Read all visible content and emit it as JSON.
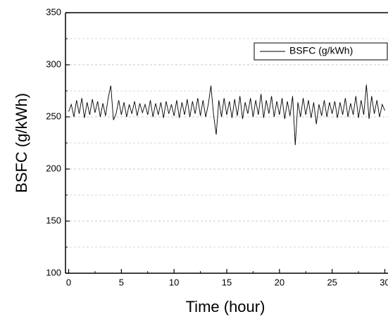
{
  "chart_data": {
    "type": "line",
    "x_label": "Time (hour)",
    "y_label": "BSFC (g/kWh)",
    "x": [
      0,
      0.25,
      0.5,
      0.75,
      1,
      1.25,
      1.5,
      1.75,
      2,
      2.25,
      2.5,
      2.75,
      3,
      3.25,
      3.5,
      3.75,
      4,
      4.25,
      4.5,
      4.75,
      5,
      5.25,
      5.5,
      5.75,
      6,
      6.25,
      6.5,
      6.75,
      7,
      7.25,
      7.5,
      7.75,
      8,
      8.25,
      8.5,
      8.75,
      9,
      9.25,
      9.5,
      9.75,
      10,
      10.25,
      10.5,
      10.75,
      11,
      11.25,
      11.5,
      11.75,
      12,
      12.25,
      12.5,
      12.75,
      13,
      13.25,
      13.5,
      13.75,
      14,
      14.25,
      14.5,
      14.75,
      15,
      15.25,
      15.5,
      15.75,
      16,
      16.25,
      16.5,
      16.75,
      17,
      17.25,
      17.5,
      17.75,
      18,
      18.25,
      18.5,
      18.75,
      19,
      19.25,
      19.5,
      19.75,
      20,
      20.25,
      20.5,
      20.75,
      21,
      21.25,
      21.5,
      21.75,
      22,
      22.25,
      22.5,
      22.75,
      23,
      23.25,
      23.5,
      23.75,
      24,
      24.25,
      24.5,
      24.75,
      25,
      25.25,
      25.5,
      25.75,
      26,
      26.25,
      26.5,
      26.75,
      27,
      27.25,
      27.5,
      27.75,
      28,
      28.25,
      28.5,
      28.75,
      29,
      29.25,
      29.5,
      29.75,
      30
    ],
    "series": [
      {
        "name": "BSFC (g/kWh)",
        "color": "#000000",
        "values": [
          255,
          262,
          250,
          266,
          253,
          268,
          249,
          264,
          252,
          267,
          254,
          265,
          250,
          263,
          251,
          268,
          280,
          247,
          253,
          266,
          252,
          264,
          250,
          262,
          253,
          265,
          251,
          263,
          254,
          262,
          252,
          266,
          250,
          263,
          252,
          264,
          249,
          265,
          253,
          262,
          251,
          266,
          249,
          264,
          252,
          267,
          250,
          265,
          253,
          268,
          251,
          266,
          250,
          262,
          280,
          252,
          233,
          266,
          250,
          268,
          252,
          265,
          249,
          267,
          251,
          270,
          248,
          264,
          253,
          268,
          250,
          266,
          252,
          272,
          249,
          266,
          253,
          270,
          250,
          265,
          252,
          268,
          248,
          265,
          251,
          270,
          223,
          264,
          250,
          268,
          252,
          266,
          249,
          264,
          243,
          262,
          251,
          266,
          250,
          264,
          253,
          265,
          249,
          264,
          252,
          268,
          250,
          263,
          252,
          270,
          249,
          266,
          252,
          281,
          248,
          270,
          253,
          266,
          250,
          262,
          256
        ]
      }
    ],
    "xlim": [
      -0.3,
      30.3
    ],
    "xticks": [
      0,
      5,
      10,
      15,
      20,
      25,
      30
    ],
    "ylim": [
      100,
      350
    ],
    "yticks": [
      100,
      150,
      200,
      250,
      300,
      350
    ],
    "grid": true,
    "legend": "upper right"
  }
}
